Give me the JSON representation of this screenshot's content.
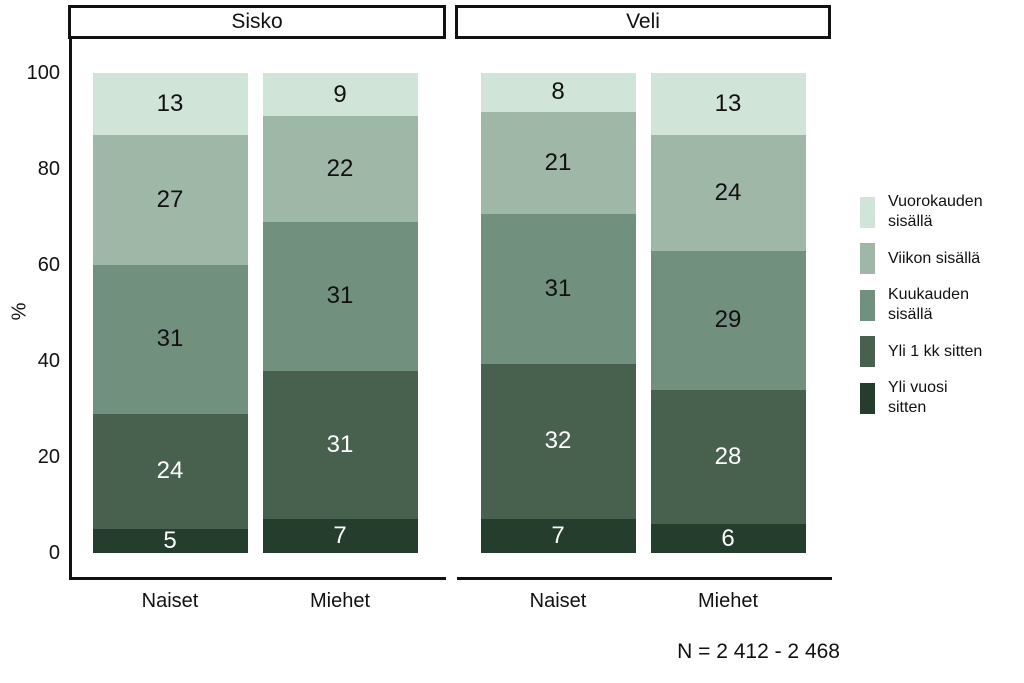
{
  "caption": "N = 2 412 - 2 468",
  "chart_data": {
    "type": "bar",
    "stacked": true,
    "orientation": "vertical",
    "title": "",
    "xlabel": "",
    "ylabel": "%",
    "ylim": [
      0,
      100
    ],
    "yticks": [
      0,
      20,
      40,
      60,
      80,
      100
    ],
    "grid": false,
    "legend_position": "right",
    "stack_order": "top-to-bottom",
    "series": [
      {
        "name": "Vuorokauden sisällä",
        "legend_label": "Vuorokauden\nsisällä",
        "color": "#d1e4d8",
        "label_color": "#111111"
      },
      {
        "name": "Viikon sisällä",
        "legend_label": "Viikon sisällä",
        "color": "#9fb7a7",
        "label_color": "#111111"
      },
      {
        "name": "Kuukauden sisällä",
        "legend_label": "Kuukauden\nsisällä",
        "color": "#72907e",
        "label_color": "#111111"
      },
      {
        "name": "Yli 1 kk sitten",
        "legend_label": "Yli 1 kk sitten",
        "color": "#48614e",
        "label_color": "#ffffff"
      },
      {
        "name": "Yli vuosi sitten",
        "legend_label": "Yli vuosi\nsitten",
        "color": "#243d2c",
        "label_color": "#ffffff"
      }
    ],
    "panels": [
      {
        "label": "Sisko",
        "stacks": [
          {
            "category": "Naiset",
            "values": [
              13,
              27,
              31,
              24,
              5
            ]
          },
          {
            "category": "Miehet",
            "values": [
              9,
              22,
              31,
              31,
              7
            ]
          }
        ]
      },
      {
        "label": "Veli",
        "stacks": [
          {
            "category": "Naiset",
            "values": [
              8,
              21,
              31,
              32,
              7
            ]
          },
          {
            "category": "Miehet",
            "values": [
              13,
              24,
              29,
              28,
              6
            ]
          }
        ]
      }
    ]
  }
}
